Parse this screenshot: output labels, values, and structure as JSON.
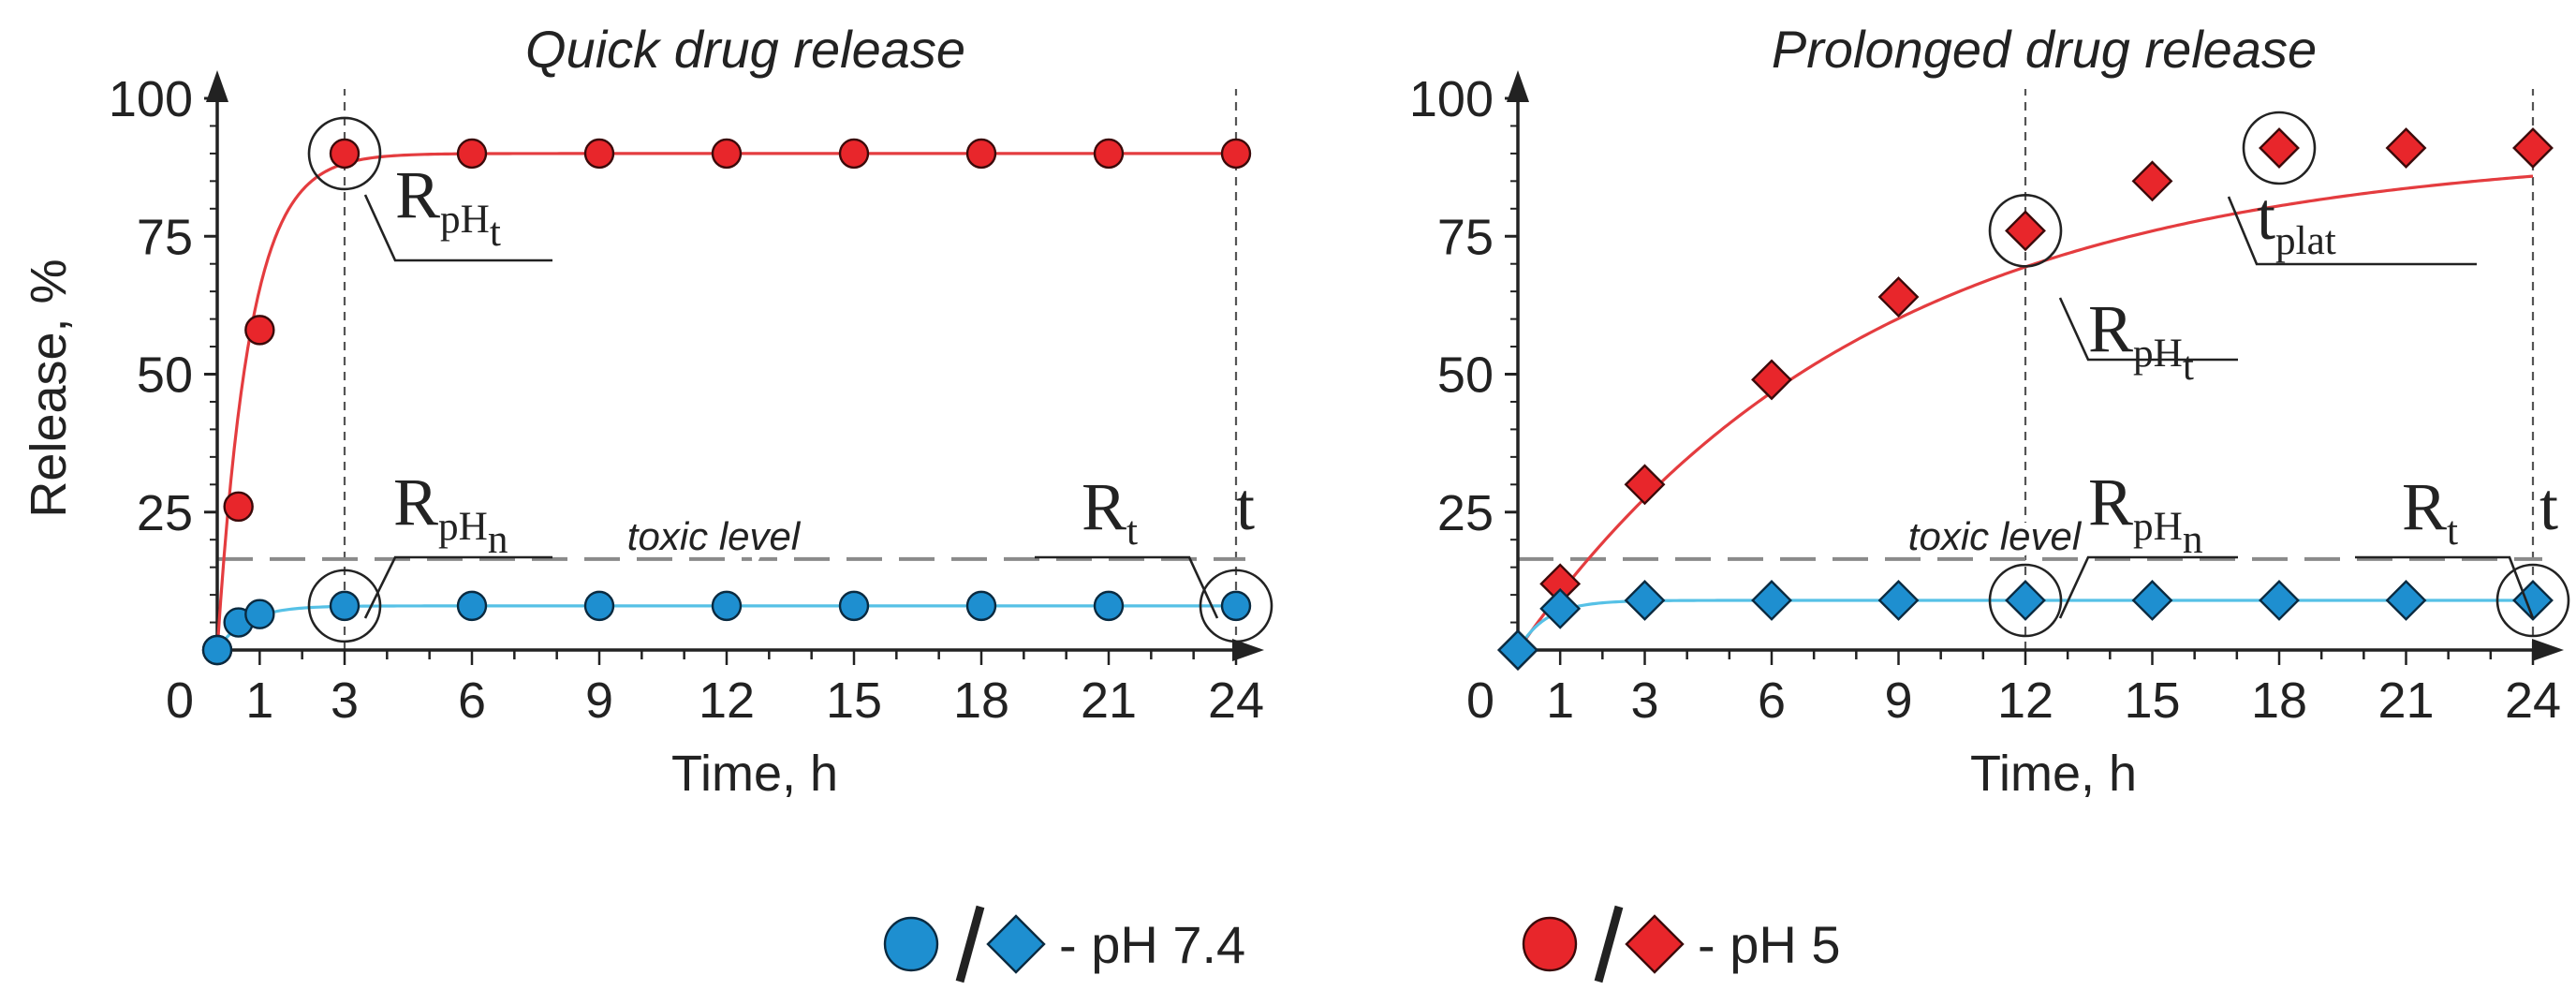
{
  "colors": {
    "axis": "#222222",
    "guide": "#555555",
    "toxic": "#8a8a8a",
    "red_fill": "#e8262b",
    "red_line": "#e43c3f",
    "red_stroke": "#3b0a0a",
    "blue_fill": "#1e8fd0",
    "blue_line": "#56c1e6",
    "blue_stroke": "#0a2a40"
  },
  "legend": {
    "items": [
      {
        "markers": [
          "circle",
          "diamond"
        ],
        "color": "blue",
        "label": "- pH 7.4"
      },
      {
        "markers": [
          "circle",
          "diamond"
        ],
        "color": "red",
        "label": "- pH 5"
      }
    ]
  },
  "chart_data": [
    {
      "type": "line",
      "title": "Quick drug release",
      "xlabel": "Time, h",
      "ylabel": "Release, %",
      "x_ticks": [
        0,
        1,
        3,
        6,
        9,
        12,
        15,
        18,
        21,
        24
      ],
      "y_ticks": [
        25,
        50,
        75,
        100
      ],
      "xlim": [
        0,
        24
      ],
      "ylim": [
        0,
        100
      ],
      "marker": "circle",
      "series": [
        {
          "color": "red",
          "x": [
            0,
            0.5,
            1,
            3,
            6,
            9,
            12,
            15,
            18,
            21,
            24
          ],
          "y": [
            0,
            26,
            58,
            90,
            90,
            90,
            90,
            90,
            90,
            90,
            90
          ],
          "fit": "exponential",
          "plateau": 90,
          "k": 1.3
        },
        {
          "color": "blue",
          "x": [
            0,
            0.5,
            1,
            3,
            6,
            9,
            12,
            15,
            18,
            21,
            24
          ],
          "y": [
            0,
            5,
            6.5,
            8,
            8,
            8,
            8,
            8,
            8,
            8,
            8
          ],
          "fit": "exponential",
          "plateau": 8,
          "k": 1.5
        }
      ],
      "toxic_level": {
        "value": 16.5,
        "label": "toxic level"
      },
      "guide_lines_x": [
        3,
        24
      ],
      "highlight_circles": [
        {
          "x": 3,
          "y": 90
        },
        {
          "x": 3,
          "y": 8
        },
        {
          "x": 24,
          "y": 8
        }
      ],
      "annotations": [
        {
          "main": "R",
          "sub": "pH",
          "subsub": "t"
        },
        {
          "main": "R",
          "sub": "pH",
          "subsub": "n"
        },
        {
          "main": "R",
          "sub": "t",
          "subsub": ""
        },
        {
          "main": "t",
          "sub": "",
          "subsub": ""
        }
      ]
    },
    {
      "type": "line",
      "title": "Prolonged drug release",
      "xlabel": "Time, h",
      "ylabel": "",
      "x_ticks": [
        0,
        1,
        3,
        6,
        9,
        12,
        15,
        18,
        21,
        24
      ],
      "y_ticks": [
        25,
        50,
        75,
        100
      ],
      "xlim": [
        0,
        24
      ],
      "ylim": [
        0,
        100
      ],
      "marker": "diamond",
      "series": [
        {
          "color": "red",
          "x": [
            0,
            1,
            3,
            6,
            9,
            12,
            15,
            18,
            21,
            24
          ],
          "y": [
            0,
            12,
            30,
            49,
            64,
            76,
            85,
            91,
            91,
            91
          ],
          "fit": "saturating",
          "plateau": 91,
          "k": 0.12,
          "t_plat": 18
        },
        {
          "color": "blue",
          "x": [
            0,
            1,
            3,
            6,
            9,
            12,
            15,
            18,
            21,
            24
          ],
          "y": [
            0,
            7.5,
            9,
            9,
            9,
            9,
            9,
            9,
            9,
            9
          ],
          "fit": "exponential",
          "plateau": 9,
          "k": 1.5
        }
      ],
      "toxic_level": {
        "value": 16.5,
        "label": "toxic level"
      },
      "guide_lines_x": [
        12,
        24
      ],
      "highlight_circles": [
        {
          "x": 12,
          "y": 76
        },
        {
          "x": 18,
          "y": 91
        },
        {
          "x": 12,
          "y": 9
        },
        {
          "x": 24,
          "y": 9
        }
      ],
      "annotations": [
        {
          "main": "R",
          "sub": "pH",
          "subsub": "t"
        },
        {
          "main": "t",
          "sub": "plat",
          "subsub": ""
        },
        {
          "main": "R",
          "sub": "pH",
          "subsub": "n"
        },
        {
          "main": "R",
          "sub": "t",
          "subsub": ""
        },
        {
          "main": "t",
          "sub": "",
          "subsub": ""
        }
      ]
    }
  ]
}
